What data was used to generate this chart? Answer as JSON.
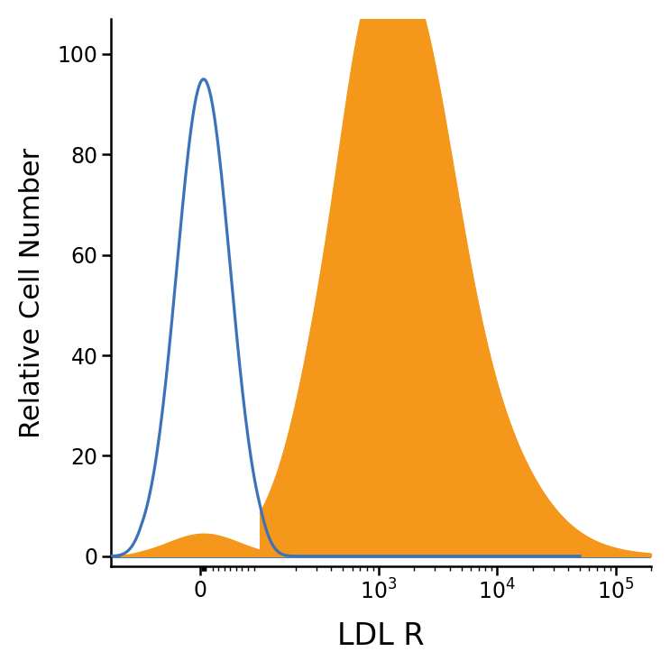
{
  "title": "",
  "xlabel": "LDL R",
  "ylabel": "Relative Cell Number",
  "ylim": [
    -2,
    107
  ],
  "blue_color": "#3B72B8",
  "orange_color": "#F5971A",
  "background_color": "#ffffff",
  "label_fontsize": 22,
  "tick_fontsize": 17
}
